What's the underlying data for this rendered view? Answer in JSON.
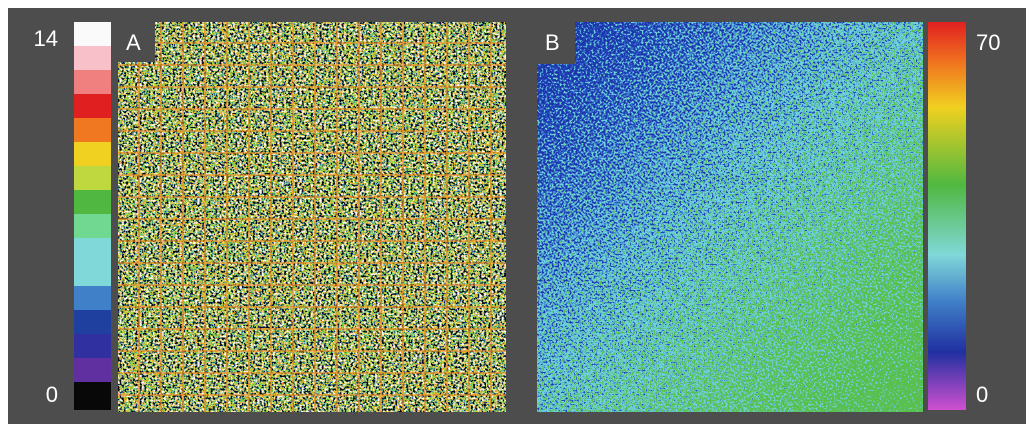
{
  "panels": [
    {
      "label": "A",
      "colorbar": {
        "max": 14,
        "min": 0
      }
    },
    {
      "label": "B",
      "colorbar": {
        "max": 70,
        "min": 0
      }
    }
  ]
}
